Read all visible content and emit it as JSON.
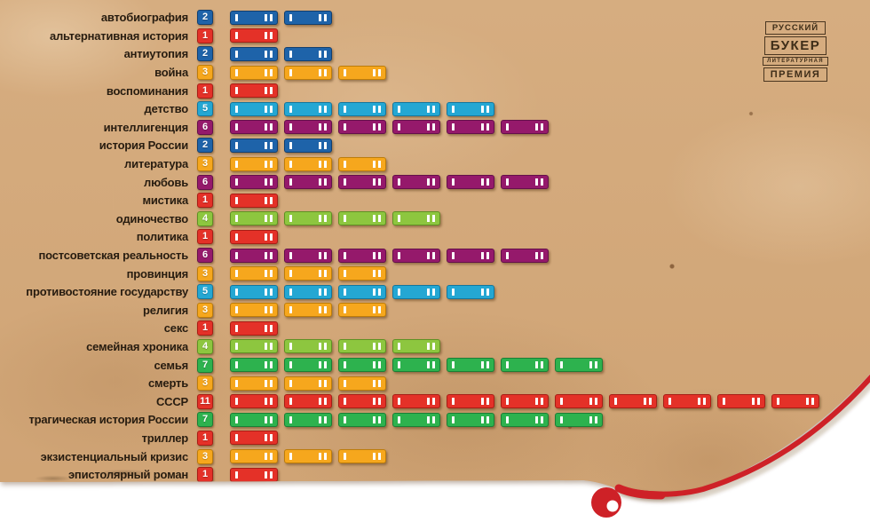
{
  "logo": {
    "line1": "РУССКИЙ",
    "line2": "БУКЕР",
    "line3": "ЛИТЕРАТУРНАЯ",
    "line4": "ПРЕМИЯ"
  },
  "palette": {
    "red": {
      "fill": "#e43128",
      "border": "#a81d15"
    },
    "blue": {
      "fill": "#1e63a9",
      "border": "#123f6f"
    },
    "yellow": {
      "fill": "#f6a71d",
      "border": "#bd7c0a"
    },
    "lightgreen": {
      "fill": "#8dc63f",
      "border": "#5f9023"
    },
    "cyan": {
      "fill": "#24a7d3",
      "border": "#15769c"
    },
    "purple": {
      "fill": "#95196b",
      "border": "#64104a"
    },
    "green": {
      "fill": "#2db24e",
      "border": "#1b7f35"
    }
  },
  "accent_red": "#ce2127",
  "paper_color": "#d1a77a",
  "chart_data": {
    "type": "bar",
    "orientation": "horizontal",
    "unit_glyph": "book-spine",
    "grid": false,
    "legend": null,
    "xlim": [
      0,
      11
    ],
    "categories": [
      "автобиография",
      "альтернативная история",
      "антиутопия",
      "война",
      "воспоминания",
      "детство",
      "интеллигенция",
      "история России",
      "литература",
      "любовь",
      "мистика",
      "одиночество",
      "политика",
      "постсоветская реальность",
      "провинция",
      "противостояние государству",
      "религия",
      "секс",
      "семейная хроника",
      "семья",
      "смерть",
      "СССР",
      "трагическая история России",
      "триллер",
      "экзистенциальный кризис",
      "эпистолярный роман"
    ],
    "values": [
      2,
      1,
      2,
      3,
      1,
      5,
      6,
      2,
      3,
      6,
      1,
      4,
      1,
      6,
      3,
      5,
      3,
      1,
      4,
      7,
      3,
      11,
      7,
      1,
      3,
      1
    ],
    "colors": [
      "blue",
      "red",
      "blue",
      "yellow",
      "red",
      "cyan",
      "purple",
      "blue",
      "yellow",
      "purple",
      "red",
      "lightgreen",
      "red",
      "purple",
      "yellow",
      "cyan",
      "yellow",
      "red",
      "lightgreen",
      "green",
      "yellow",
      "red",
      "green",
      "red",
      "yellow",
      "red"
    ]
  }
}
